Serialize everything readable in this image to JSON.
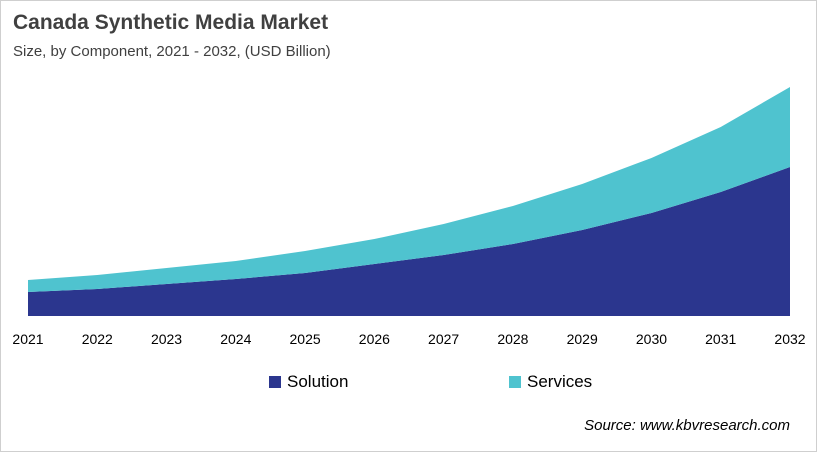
{
  "chart_data": {
    "type": "area",
    "stacked": true,
    "title": "Canada Synthetic Media Market",
    "subtitle": "Size, by Component, 2021 - 2032, (USD Billion)",
    "categories": [
      "2021",
      "2022",
      "2023",
      "2024",
      "2025",
      "2026",
      "2027",
      "2028",
      "2029",
      "2030",
      "2031",
      "2032"
    ],
    "series": [
      {
        "name": "Solution",
        "color": "#2b368e",
        "values": [
          24,
          27,
          32,
          37,
          43,
          52,
          61,
          72,
          86,
          103,
          124,
          149
        ]
      },
      {
        "name": "Services",
        "color": "#4fc3cf",
        "values": [
          12,
          14,
          16,
          18,
          22,
          25,
          31,
          38,
          46,
          55,
          65,
          80
        ]
      }
    ],
    "ylim": [
      0,
      235
    ],
    "y_axis_visible": false,
    "grid": false,
    "legend_position": "bottom",
    "source": "Source: www.kbvresearch.com"
  }
}
